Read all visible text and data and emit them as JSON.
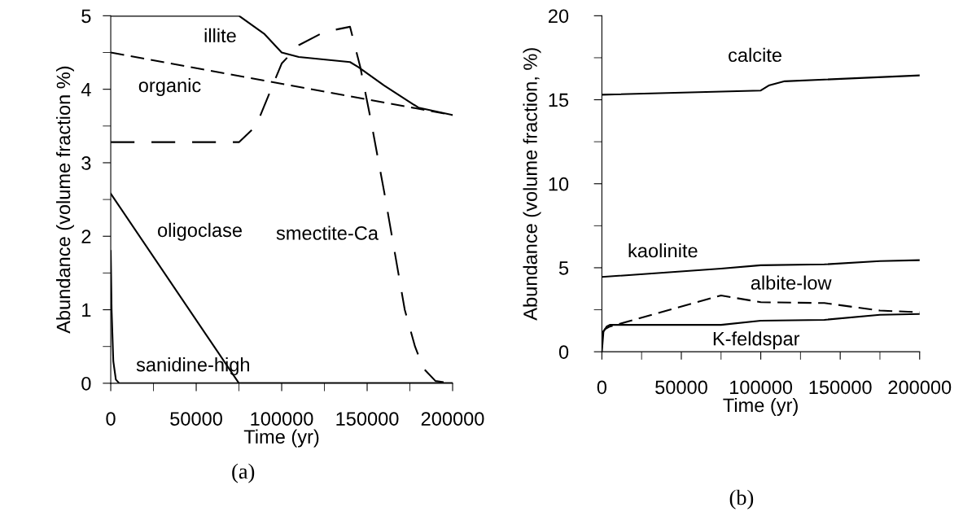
{
  "chart_data": [
    {
      "type": "line",
      "xlabel": "Time (yr)",
      "ylabel": "Abundance (volume fraction %)",
      "xlim": [
        0,
        200000
      ],
      "ylim": [
        0,
        5
      ],
      "xticks": [
        0,
        {
          "value": 25000,
          "label": null
        },
        50000,
        {
          "value": 75000,
          "label": null
        },
        100000,
        {
          "value": 125000,
          "label": null
        },
        150000,
        {
          "value": 175000,
          "label": null
        },
        200000
      ],
      "yticks": [
        0,
        {
          "value": 0.5,
          "label": null
        },
        1,
        {
          "value": 1.5,
          "label": null
        },
        2,
        {
          "value": 2.5,
          "label": null
        },
        3,
        {
          "value": 3.5,
          "label": null
        },
        4,
        {
          "value": 4.5,
          "label": null
        },
        5
      ],
      "grid": false,
      "legend": false,
      "series": [
        {
          "color": "#000000",
          "line_style": "solid",
          "x": [
            0,
            75000,
            90000,
            100000,
            110000,
            140000,
            145000,
            160000,
            180000,
            200000
          ],
          "values": [
            5,
            5,
            4.75,
            4.5,
            4.44,
            4.37,
            4.3,
            4.05,
            3.75,
            3.65
          ]
        },
        {
          "color": "#000000",
          "line_style": "dashed",
          "x": [
            0,
            200000
          ],
          "values": [
            4.5,
            3.65
          ]
        },
        {
          "color": "#000000",
          "line_style": "longdash",
          "x": [
            0,
            75000,
            85000,
            100000,
            110000,
            125000,
            140000,
            146000,
            152000,
            160000,
            166000,
            172000,
            178000,
            183000,
            190000,
            200000
          ],
          "values": [
            3.28,
            3.28,
            3.5,
            4.35,
            4.6,
            4.78,
            4.85,
            4.3,
            3.6,
            2.6,
            1.8,
            1.0,
            0.5,
            0.2,
            0.03,
            0
          ]
        },
        {
          "color": "#000000",
          "line_style": "solid",
          "x": [
            0,
            75000,
            200000
          ],
          "values": [
            2.58,
            0,
            0
          ]
        },
        {
          "color": "#000000",
          "line_style": "solid",
          "x": [
            0,
            500,
            1500,
            3000,
            5000,
            200000
          ],
          "values": [
            1.8,
            1.0,
            0.3,
            0.05,
            0,
            0
          ]
        }
      ],
      "annotations": [
        {
          "text": "illite",
          "x": 64000,
          "y": 5
        },
        {
          "text": "organic",
          "x": 34500,
          "y": 4.353
        },
        {
          "text": "oligoclase",
          "x": 15100,
          "y": 2.06
        },
        {
          "text": "smectite-Ca",
          "x": 164350,
          "y": 2.02
        },
        {
          "text": "sanidine-high",
          "x": 1920,
          "y": 0.23
        },
        "(a)"
      ]
    },
    {
      "type": "line",
      "xlabel": "Time (yr)",
      "ylabel": "Abundance (volume fraction, %)",
      "xlim": [
        0,
        200000
      ],
      "ylim": [
        0,
        20
      ],
      "xticks": [
        0,
        {
          "value": 25000,
          "label": null
        },
        50000,
        {
          "value": 75000,
          "label": null
        },
        100000,
        {
          "value": 125000,
          "label": null
        },
        150000,
        {
          "value": 175000,
          "label": null
        },
        200000
      ],
      "yticks": [
        0,
        {
          "value": 2.5,
          "label": null
        },
        5,
        {
          "value": 7.5,
          "label": null
        },
        10,
        {
          "value": 12.5,
          "label": null
        },
        15,
        {
          "value": 17.5,
          "label": null
        },
        20
      ],
      "grid": false,
      "legend": false,
      "series": [
        {
          "color": "#000000",
          "line_style": "solid",
          "x": [
            0,
            100000,
            105000,
            115000,
            140000,
            200000
          ],
          "values": [
            15.3,
            15.55,
            15.85,
            16.1,
            16.2,
            16.45
          ]
        },
        {
          "color": "#000000",
          "line_style": "solid",
          "x": [
            0,
            75000,
            100000,
            140000,
            175000,
            200000
          ],
          "values": [
            4.45,
            4.95,
            5.15,
            5.2,
            5.4,
            5.45
          ]
        },
        {
          "color": "#000000",
          "line_style": "dashed",
          "x": [
            0,
            2000,
            5000,
            75000,
            100000,
            140000,
            175000,
            200000
          ],
          "values": [
            1.1,
            1.35,
            1.5,
            3.35,
            2.95,
            2.9,
            2.45,
            2.35
          ]
        },
        {
          "color": "#000000",
          "line_style": "solid",
          "x": [
            0,
            1000,
            3000,
            5000,
            75000,
            100000,
            140000,
            175000,
            200000
          ],
          "values": [
            0,
            1.2,
            1.5,
            1.6,
            1.6,
            1.85,
            1.9,
            2.2,
            2.25
          ]
        }
      ],
      "annotations": [
        {
          "text": "calcite",
          "x": 96400,
          "y": 15.54
        },
        {
          "text": "kaolinite",
          "x": 38400,
          "y": 4.706
        },
        {
          "text": "albite-low",
          "x": 119000,
          "y": 2.926
        },
        {
          "text": "K-feldspar",
          "x": 97000,
          "y": 1.82
        },
        "(b)"
      ]
    }
  ]
}
